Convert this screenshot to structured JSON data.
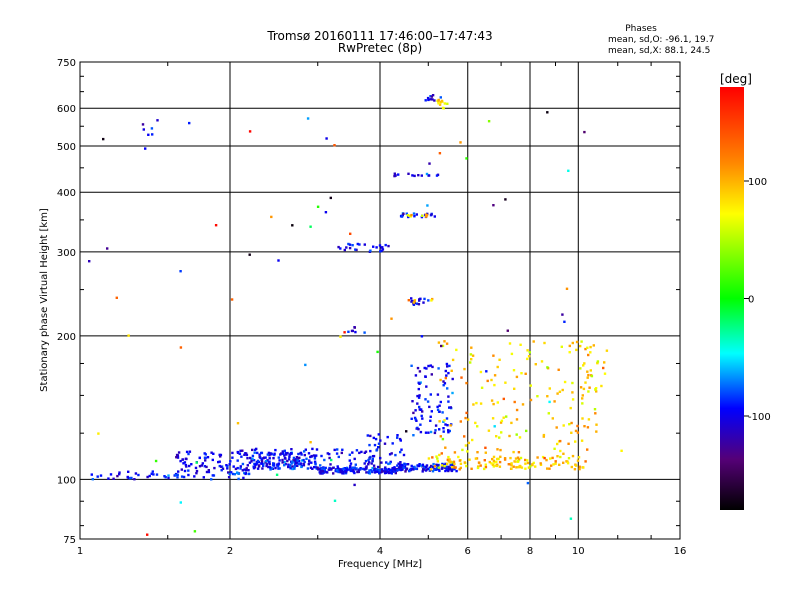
{
  "chart_data": {
    "type": "scatter",
    "title_lines": [
      "Tromsø 20160111 17:46:00–17:47:43",
      "RwPretec (8p)"
    ],
    "xlabel": "Frequency [MHz]",
    "ylabel": "Stationary phase Virtual Height [km]",
    "x_scale": "log",
    "y_scale": "log",
    "xlim": [
      1,
      16
    ],
    "ylim": [
      75,
      750
    ],
    "x_ticks": [
      1,
      2,
      4,
      6,
      8,
      10,
      16
    ],
    "x_tick_labels": [
      "1",
      "2",
      "4",
      "6",
      "8",
      "10",
      "16"
    ],
    "y_ticks": [
      75,
      100,
      200,
      300,
      400,
      500,
      600,
      750
    ],
    "y_tick_labels": [
      "75",
      "100",
      "200",
      "300",
      "400",
      "500",
      "600",
      "750"
    ],
    "grid": true,
    "stats": {
      "heading": "Phases",
      "line_o": "mean, sd,O: -96.1, 19.7",
      "line_x": "mean, sd,X:  88.1, 24.5"
    },
    "colorbar": {
      "label": "[deg]",
      "range": [
        -180,
        180
      ],
      "tick_values": [
        100,
        0,
        -100
      ],
      "tick_labels": [
        "100",
        "0",
        "-100"
      ],
      "colors": [
        "#ff0000",
        "#ff8800",
        "#ffff00",
        "#00ff00",
        "#00ffff",
        "#0000ff",
        "#550077",
        "#000000"
      ]
    },
    "series": [
      {
        "mode": "O",
        "phase_mean": -96.1,
        "clusters": [
          {
            "f": [
              1.05,
              1.55
            ],
            "h": [
              100,
              104
            ],
            "n": 30
          },
          {
            "f": [
              1.55,
              2.2
            ],
            "h": [
              100,
              115
            ],
            "n": 120
          },
          {
            "f": [
              2.2,
              3.0
            ],
            "h": [
              105,
              114
            ],
            "n": 140
          },
          {
            "f": [
              3.0,
              4.3
            ],
            "h": [
              103,
              106
            ],
            "n": 160
          },
          {
            "f": [
              2.2,
              4.5
            ],
            "h": [
              106,
              116
            ],
            "n": 90
          },
          {
            "f": [
              3.7,
              4.4
            ],
            "h": [
              108,
              125
            ],
            "n": 30
          },
          {
            "f": [
              4.3,
              5.7
            ],
            "h": [
              104,
              108
            ],
            "n": 120
          },
          {
            "f": [
              4.6,
              5.6
            ],
            "h": [
              125,
              175
            ],
            "n": 90
          },
          {
            "f": [
              3.3,
              4.3
            ],
            "h": [
              300,
              312
            ],
            "n": 25
          },
          {
            "f": [
              4.2,
              5.3
            ],
            "h": [
              432,
              440
            ],
            "n": 15
          },
          {
            "f": [
              4.4,
              5.2
            ],
            "h": [
              355,
              362
            ],
            "n": 20
          },
          {
            "f": [
              4.6,
              5.0
            ],
            "h": [
              232,
              240
            ],
            "n": 15
          },
          {
            "f": [
              4.9,
              5.4
            ],
            "h": [
              620,
              640
            ],
            "n": 10
          },
          {
            "f": [
              1.3,
              1.45
            ],
            "h": [
              520,
              590
            ],
            "n": 6
          },
          {
            "f": [
              3.4,
              3.6
            ],
            "h": [
              202,
              210
            ],
            "n": 6
          }
        ]
      },
      {
        "mode": "X",
        "phase_mean": 88.1,
        "clusters": [
          {
            "f": [
              5.0,
              10.3
            ],
            "h": [
              105,
              112
            ],
            "n": 130
          },
          {
            "f": [
              5.2,
              11.0
            ],
            "h": [
              112,
              195
            ],
            "n": 160
          },
          {
            "f": [
              10.2,
              11.5
            ],
            "h": [
              150,
              195
            ],
            "n": 25
          },
          {
            "f": [
              5.2,
              5.5
            ],
            "h": [
              600,
              625
            ],
            "n": 12
          },
          {
            "f": [
              4.4,
              5.0
            ],
            "h": [
              355,
              362
            ],
            "n": 8
          },
          {
            "f": [
              4.5,
              5.1
            ],
            "h": [
              235,
              240
            ],
            "n": 6
          }
        ]
      },
      {
        "mode": "scatter",
        "clusters": [
          {
            "f": [
              1.0,
              12.5
            ],
            "h": [
              76,
              600
            ],
            "n": 70
          }
        ]
      }
    ]
  }
}
